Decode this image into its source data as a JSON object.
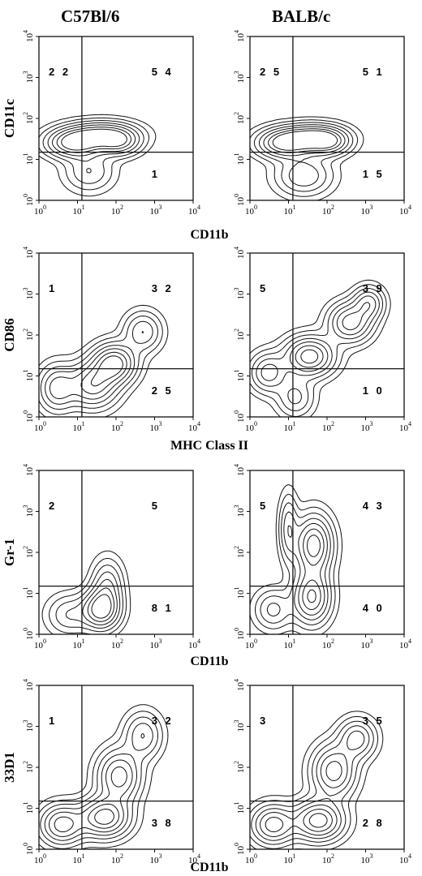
{
  "column_titles": [
    "C57Bl/6",
    "BALB/c"
  ],
  "axis_ticks": [
    "10",
    "10",
    "10",
    "10",
    "10"
  ],
  "axis_tick_exponents": [
    "0",
    "1",
    "2",
    "3",
    "4"
  ],
  "chart_data": [
    {
      "type": "contour",
      "strain": "C57Bl/6",
      "xlabel": "",
      "ylabel": "CD11c",
      "xscale": "log",
      "yscale": "log",
      "xlim": [
        1,
        10000
      ],
      "ylim": [
        1,
        10000
      ],
      "gate": {
        "x": 13,
        "y": 15
      },
      "quadrant_percentages": {
        "upper_left": "2 2",
        "upper_right": "5 4",
        "lower_right": "1"
      },
      "density_peaks": [
        {
          "x": 8,
          "y": 25,
          "sx": 0.45,
          "sy": 0.22,
          "w": 1.0
        },
        {
          "x": 45,
          "y": 40,
          "sx": 0.55,
          "sy": 0.2,
          "w": 0.9
        },
        {
          "x": 120,
          "y": 25,
          "sx": 0.35,
          "sy": 0.2,
          "w": 0.6
        },
        {
          "x": 20,
          "y": 5,
          "sx": 0.4,
          "sy": 0.3,
          "w": 0.35
        }
      ]
    },
    {
      "type": "contour",
      "strain": "BALB/c",
      "xlabel": "",
      "ylabel": "",
      "xscale": "log",
      "yscale": "log",
      "xlim": [
        1,
        10000
      ],
      "ylim": [
        1,
        10000
      ],
      "gate": {
        "x": 13,
        "y": 15
      },
      "quadrant_percentages": {
        "upper_left": "2 5",
        "upper_right": "5 1",
        "lower_right": "1 5"
      },
      "density_peaks": [
        {
          "x": 8,
          "y": 25,
          "sx": 0.45,
          "sy": 0.22,
          "w": 1.0
        },
        {
          "x": 45,
          "y": 35,
          "sx": 0.5,
          "sy": 0.2,
          "w": 0.9
        },
        {
          "x": 110,
          "y": 25,
          "sx": 0.35,
          "sy": 0.2,
          "w": 0.6
        },
        {
          "x": 25,
          "y": 4,
          "sx": 0.45,
          "sy": 0.3,
          "w": 0.5
        }
      ]
    },
    {
      "type": "contour",
      "strain": "C57Bl/6",
      "xlabel": "CD11b",
      "ylabel": "CD86",
      "xscale": "log",
      "yscale": "log",
      "xlim": [
        1,
        10000
      ],
      "ylim": [
        1,
        10000
      ],
      "gate": {
        "x": 13,
        "y": 15
      },
      "quadrant_percentages": {
        "upper_left": "1",
        "upper_right": "3 2",
        "lower_right": "2 5"
      },
      "density_peaks": [
        {
          "x": 3,
          "y": 5,
          "sx": 0.3,
          "sy": 0.35,
          "w": 0.6
        },
        {
          "x": 25,
          "y": 6,
          "sx": 0.4,
          "sy": 0.35,
          "w": 0.8
        },
        {
          "x": 90,
          "y": 20,
          "sx": 0.35,
          "sy": 0.3,
          "w": 1.0
        },
        {
          "x": 500,
          "y": 120,
          "sx": 0.3,
          "sy": 0.3,
          "w": 0.5
        }
      ]
    },
    {
      "type": "contour",
      "strain": "BALB/c",
      "xlabel": "",
      "ylabel": "",
      "xscale": "log",
      "yscale": "log",
      "xlim": [
        1,
        10000
      ],
      "ylim": [
        1,
        10000
      ],
      "gate": {
        "x": 13,
        "y": 15
      },
      "quadrant_percentages": {
        "upper_left": "5",
        "upper_right": "3 9",
        "lower_right": "1 0"
      },
      "density_peaks": [
        {
          "x": 3,
          "y": 12,
          "sx": 0.3,
          "sy": 0.3,
          "w": 0.6
        },
        {
          "x": 35,
          "y": 30,
          "sx": 0.4,
          "sy": 0.3,
          "w": 1.0
        },
        {
          "x": 400,
          "y": 200,
          "sx": 0.35,
          "sy": 0.3,
          "w": 0.8
        },
        {
          "x": 1200,
          "y": 600,
          "sx": 0.25,
          "sy": 0.25,
          "w": 0.6
        },
        {
          "x": 15,
          "y": 3,
          "sx": 0.3,
          "sy": 0.3,
          "w": 0.4
        }
      ]
    },
    {
      "type": "contour",
      "strain": "C57Bl/6",
      "xlabel": "MHC Class II",
      "ylabel": "Gr-1",
      "xscale": "log",
      "yscale": "log",
      "xlim": [
        1,
        10000
      ],
      "ylim": [
        1,
        10000
      ],
      "gate": {
        "x": 13,
        "y": 15
      },
      "quadrant_percentages": {
        "upper_left": "2",
        "upper_right": "5",
        "lower_right": "8 1"
      },
      "density_peaks": [
        {
          "x": 40,
          "y": 4,
          "sx": 0.3,
          "sy": 0.3,
          "w": 1.0
        },
        {
          "x": 60,
          "y": 15,
          "sx": 0.25,
          "sy": 0.4,
          "w": 0.5
        },
        {
          "x": 6,
          "y": 3,
          "sx": 0.35,
          "sy": 0.3,
          "w": 0.35
        }
      ]
    },
    {
      "type": "contour",
      "strain": "BALB/c",
      "xlabel": "",
      "ylabel": "",
      "xscale": "log",
      "yscale": "log",
      "xlim": [
        1,
        10000
      ],
      "ylim": [
        1,
        10000
      ],
      "gate": {
        "x": 13,
        "y": 15
      },
      "quadrant_percentages": {
        "upper_left": "5",
        "upper_right": "4 3",
        "lower_right": "4 0"
      },
      "density_peaks": [
        {
          "x": 40,
          "y": 8,
          "sx": 0.3,
          "sy": 0.4,
          "w": 0.9
        },
        {
          "x": 45,
          "y": 150,
          "sx": 0.3,
          "sy": 0.45,
          "w": 1.0
        },
        {
          "x": 10,
          "y": 400,
          "sx": 0.15,
          "sy": 0.5,
          "w": 0.45
        },
        {
          "x": 4,
          "y": 4,
          "sx": 0.3,
          "sy": 0.3,
          "w": 0.4
        }
      ]
    },
    {
      "type": "contour",
      "strain": "C57Bl/6",
      "xlabel": "CD11b",
      "ylabel": "33D1",
      "xscale": "log",
      "yscale": "log",
      "xlim": [
        1,
        10000
      ],
      "ylim": [
        1,
        10000
      ],
      "gate": {
        "x": 13,
        "y": 15
      },
      "quadrant_percentages": {
        "upper_left": "1",
        "upper_right": "3 2",
        "lower_right": "3 8"
      },
      "density_peaks": [
        {
          "x": 4,
          "y": 4,
          "sx": 0.35,
          "sy": 0.3,
          "w": 0.8
        },
        {
          "x": 50,
          "y": 6,
          "sx": 0.4,
          "sy": 0.3,
          "w": 1.0
        },
        {
          "x": 120,
          "y": 60,
          "sx": 0.35,
          "sy": 0.4,
          "w": 0.8
        },
        {
          "x": 500,
          "y": 600,
          "sx": 0.3,
          "sy": 0.35,
          "w": 0.5
        }
      ]
    },
    {
      "type": "contour",
      "strain": "BALB/c",
      "xlabel": "",
      "ylabel": "",
      "xscale": "log",
      "yscale": "log",
      "xlim": [
        1,
        10000
      ],
      "ylim": [
        1,
        10000
      ],
      "gate": {
        "x": 13,
        "y": 15
      },
      "quadrant_percentages": {
        "upper_left": "3",
        "upper_right": "3 5",
        "lower_right": "2 8"
      },
      "density_peaks": [
        {
          "x": 4,
          "y": 4,
          "sx": 0.35,
          "sy": 0.3,
          "w": 0.8
        },
        {
          "x": 60,
          "y": 5,
          "sx": 0.4,
          "sy": 0.3,
          "w": 1.0
        },
        {
          "x": 150,
          "y": 80,
          "sx": 0.35,
          "sy": 0.4,
          "w": 0.8
        },
        {
          "x": 600,
          "y": 500,
          "sx": 0.3,
          "sy": 0.3,
          "w": 0.6
        }
      ]
    }
  ],
  "footer_xlabel": "CD11b"
}
